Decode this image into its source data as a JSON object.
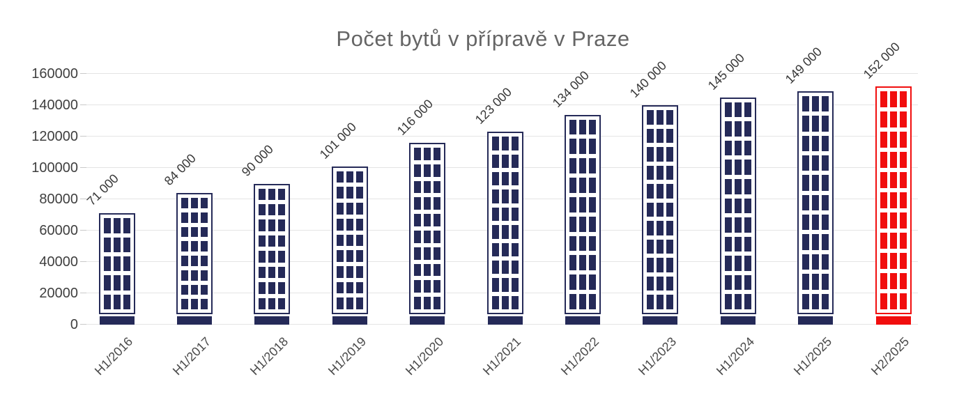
{
  "title": "Počet bytů v přípravě v Praze",
  "chart_data": {
    "type": "bar",
    "title": "Počet bytů v přípravě v Praze",
    "categories": [
      "H1/2016",
      "H1/2017",
      "H1/2018",
      "H1/2019",
      "H1/2020",
      "H1/2021",
      "H1/2022",
      "H1/2023",
      "H1/2024",
      "H1/2025",
      "H2/2025"
    ],
    "values": [
      71000,
      84000,
      90000,
      101000,
      116000,
      123000,
      134000,
      140000,
      145000,
      149000,
      152000
    ],
    "data_labels": [
      "71 000",
      "84 000",
      "90 000",
      "101 000",
      "116 000",
      "123 000",
      "134 000",
      "140 000",
      "145 000",
      "149 000",
      "152 000"
    ],
    "xlabel": "",
    "ylabel": "",
    "ylim": [
      0,
      160000
    ],
    "ytick_step": 20000,
    "ytick_labels": [
      "0",
      "20000",
      "40000",
      "60000",
      "80000",
      "100000",
      "120000",
      "140000",
      "160000"
    ],
    "grid": "horizontal",
    "legend": "none",
    "bar_style": "building-with-windows",
    "window_rows": [
      5,
      8,
      8,
      9,
      10,
      10,
      10,
      11,
      11,
      11,
      11
    ],
    "highlight_index": 10,
    "colors": {
      "bar_navy": "#252a58",
      "highlight_red": "#f10e0e",
      "title_gray": "#656565",
      "gridline": "#e4e4e4",
      "axis_text": "#3f3f3f",
      "data_label_text": "#383838",
      "background": "#ffffff"
    }
  }
}
